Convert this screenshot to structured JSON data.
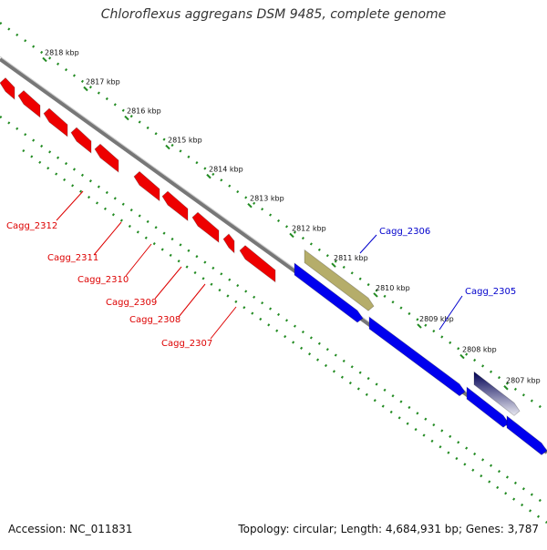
{
  "title": "Chloroflexus aggregans DSM 9485, complete genome",
  "accession_label": "Accession:",
  "accession": "NC_011831",
  "topology_text": "Topology: circular; Length: 4,684,931 bp; Genes: 3,787",
  "ruler_ticks": [
    "2818 kbp",
    "2817 kbp",
    "2816 kbp",
    "2815 kbp",
    "2814 kbp",
    "2813 kbp",
    "2812 kbp",
    "2811 kbp",
    "2810 kbp",
    "2809 kbp",
    "2808 kbp",
    "2807 kbp"
  ],
  "labeled_genes": [
    {
      "name": "Cagg_2306",
      "strand": "+",
      "color": "#0000cc"
    },
    {
      "name": "Cagg_2305",
      "strand": "+",
      "color": "#0000cc"
    },
    {
      "name": "Cagg_2312",
      "strand": "-",
      "color": "#dd0000"
    },
    {
      "name": "Cagg_2311",
      "strand": "-",
      "color": "#dd0000"
    },
    {
      "name": "Cagg_2310",
      "strand": "-",
      "color": "#dd0000"
    },
    {
      "name": "Cagg_2309",
      "strand": "-",
      "color": "#dd0000"
    },
    {
      "name": "Cagg_2308",
      "strand": "-",
      "color": "#dd0000"
    },
    {
      "name": "Cagg_2307",
      "strand": "-",
      "color": "#dd0000"
    }
  ],
  "colors": {
    "forward_strand": "#0000ee",
    "reverse_strand": "#ee0000",
    "highlight_gene": "#b5ad6a",
    "dark_gene": "#000066",
    "backbone": "#777777",
    "ruler": "#228b22"
  }
}
